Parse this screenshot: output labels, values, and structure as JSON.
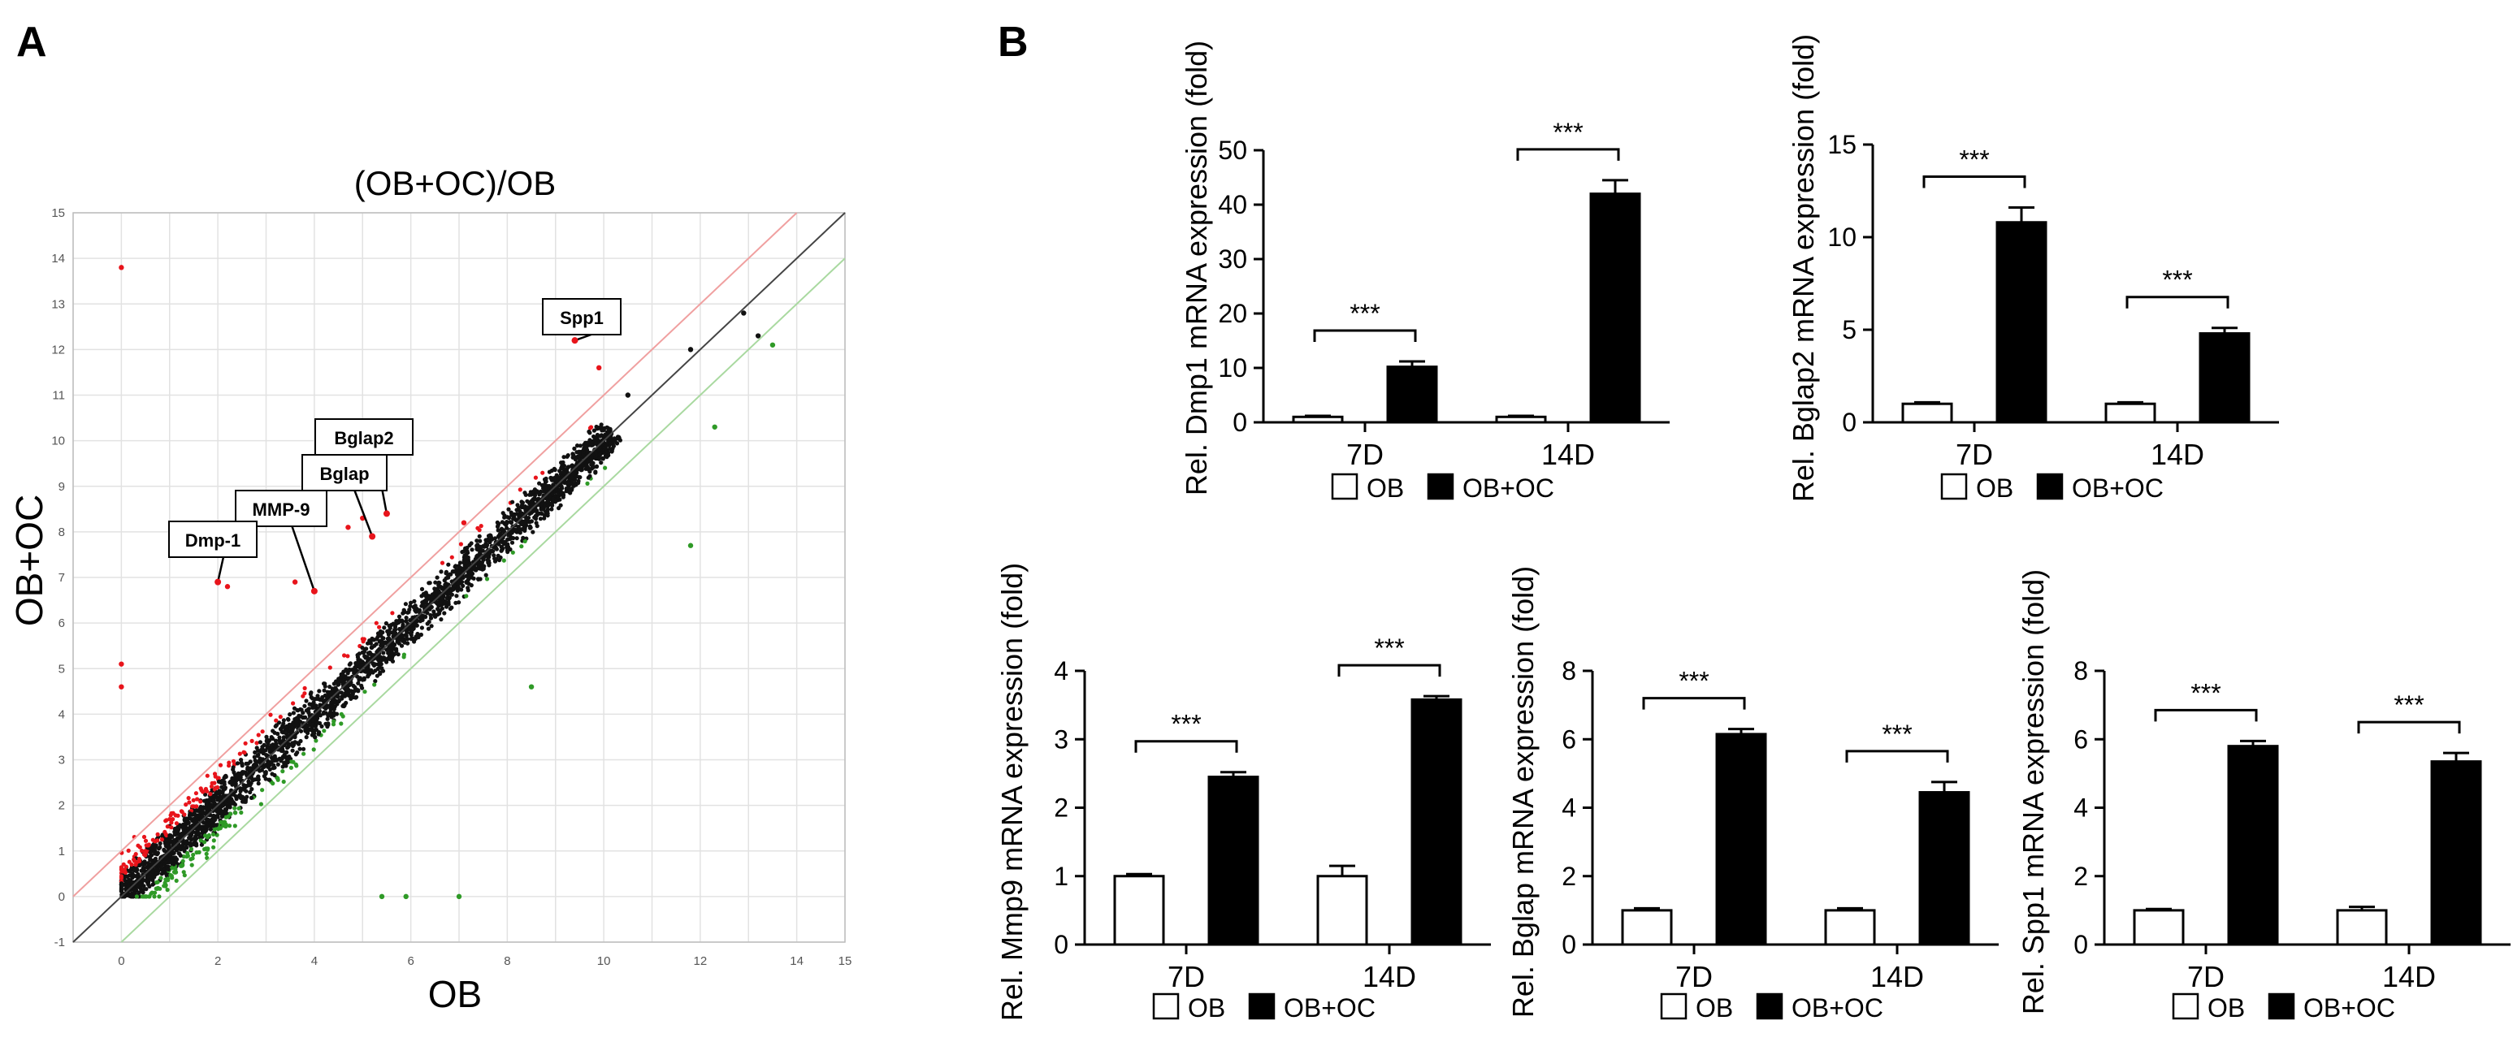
{
  "panel_labels": {
    "a": "A",
    "b": "B"
  },
  "scatter": {
    "title": "(OB+OC)/OB",
    "xlabel": "OB",
    "ylabel": "OB+OC",
    "x_ticks": [
      "0",
      "2",
      "4",
      "6",
      "8",
      "10",
      "12",
      "14",
      "15"
    ],
    "y_ticks": [
      "-1",
      "0",
      "1",
      "2",
      "3",
      "4",
      "5",
      "6",
      "7",
      "8",
      "9",
      "10",
      "11",
      "12",
      "13",
      "14",
      "15"
    ],
    "annotations": [
      "Spp1",
      "Bglap2",
      "Bglap",
      "MMP-9",
      "Dmp-1"
    ],
    "colors": {
      "up": "#e8141b",
      "down": "#2f9a27",
      "neutral": "#111111"
    }
  },
  "legend": {
    "ob": "OB",
    "oboc": "OB+OC"
  },
  "significance": "***",
  "chart_data": [
    {
      "type": "scatter",
      "title": "(OB+OC)/OB",
      "xlabel": "OB",
      "ylabel": "OB+OC",
      "xlim": [
        -1,
        15
      ],
      "ylim": [
        -1,
        15
      ],
      "highlighted_points": [
        {
          "label": "Spp1",
          "x": 9.4,
          "y": 12.2
        },
        {
          "label": "Bglap2",
          "x": 5.5,
          "y": 8.4
        },
        {
          "label": "Bglap",
          "x": 5.2,
          "y": 7.9
        },
        {
          "label": "MMP-9",
          "x": 4.0,
          "y": 6.7
        },
        {
          "label": "Dmp-1",
          "x": 2.0,
          "y": 6.9
        }
      ],
      "outliers_up": [
        [
          0,
          13.8
        ],
        [
          0,
          5.1
        ],
        [
          0,
          4.6
        ],
        [
          4.7,
          8.1
        ],
        [
          5.0,
          8.3
        ],
        [
          2.2,
          6.8
        ],
        [
          3.6,
          6.9
        ],
        [
          9.9,
          11.6
        ],
        [
          7.1,
          8.2
        ]
      ],
      "outliers_down": [
        [
          5.4,
          0.0
        ],
        [
          5.9,
          0.0
        ],
        [
          7.0,
          0.0
        ],
        [
          12.3,
          10.3
        ],
        [
          13.5,
          12.1
        ],
        [
          11.8,
          7.7
        ],
        [
          8.5,
          4.6
        ]
      ],
      "outliers_neutral": [
        [
          11.8,
          12.0
        ],
        [
          12.9,
          12.8
        ],
        [
          13.2,
          12.3
        ],
        [
          10.5,
          11.0
        ]
      ]
    },
    {
      "type": "bar",
      "ylabel": "Rel. Dmp1 mRNA expression (fold)",
      "categories": [
        "7D",
        "14D"
      ],
      "series": [
        {
          "name": "OB",
          "values": [
            1,
            1
          ],
          "errors": [
            0.2,
            0.2
          ]
        },
        {
          "name": "OB+OC",
          "values": [
            10.2,
            42
          ],
          "errors": [
            1.0,
            2.5
          ]
        }
      ],
      "ylim": [
        0,
        50
      ],
      "yticks": [
        0,
        10,
        20,
        30,
        40,
        50
      ],
      "significance": [
        "***",
        "***"
      ]
    },
    {
      "type": "bar",
      "ylabel": "Rel. Bglap2 mRNA expression (fold)",
      "categories": [
        "7D",
        "14D"
      ],
      "series": [
        {
          "name": "OB",
          "values": [
            1,
            1
          ],
          "errors": [
            0.08,
            0.08
          ]
        },
        {
          "name": "OB+OC",
          "values": [
            10.8,
            4.8
          ],
          "errors": [
            0.8,
            0.3
          ]
        }
      ],
      "ylim": [
        0,
        15
      ],
      "yticks": [
        0,
        5,
        10,
        15
      ],
      "significance": [
        "***",
        "***"
      ]
    },
    {
      "type": "bar",
      "ylabel": "Rel. Mmp9 mRNA expression (fold)",
      "categories": [
        "7D",
        "14D"
      ],
      "series": [
        {
          "name": "OB",
          "values": [
            1,
            1
          ],
          "errors": [
            0.03,
            0.15
          ]
        },
        {
          "name": "OB+OC",
          "values": [
            2.45,
            3.58
          ],
          "errors": [
            0.07,
            0.05
          ]
        }
      ],
      "ylim": [
        0,
        4
      ],
      "yticks": [
        0,
        1,
        2,
        3,
        4
      ],
      "significance": [
        "***",
        "***"
      ]
    },
    {
      "type": "bar",
      "ylabel": "Rel. Bglap mRNA expression (fold)",
      "categories": [
        "7D",
        "14D"
      ],
      "series": [
        {
          "name": "OB",
          "values": [
            1,
            1
          ],
          "errors": [
            0.06,
            0.06
          ]
        },
        {
          "name": "OB+OC",
          "values": [
            6.15,
            4.45
          ],
          "errors": [
            0.15,
            0.3
          ]
        }
      ],
      "ylim": [
        0,
        8
      ],
      "yticks": [
        0,
        2,
        4,
        6,
        8
      ],
      "significance": [
        "***",
        "***"
      ]
    },
    {
      "type": "bar",
      "ylabel": "Rel. Spp1 mRNA expression (fold)",
      "categories": [
        "7D",
        "14D"
      ],
      "series": [
        {
          "name": "OB",
          "values": [
            1,
            1
          ],
          "errors": [
            0.04,
            0.1
          ]
        },
        {
          "name": "OB+OC",
          "values": [
            5.8,
            5.35
          ],
          "errors": [
            0.15,
            0.25
          ]
        }
      ],
      "ylim": [
        0,
        8
      ],
      "yticks": [
        0,
        2,
        4,
        6,
        8
      ],
      "significance": [
        "***",
        "***"
      ]
    }
  ]
}
